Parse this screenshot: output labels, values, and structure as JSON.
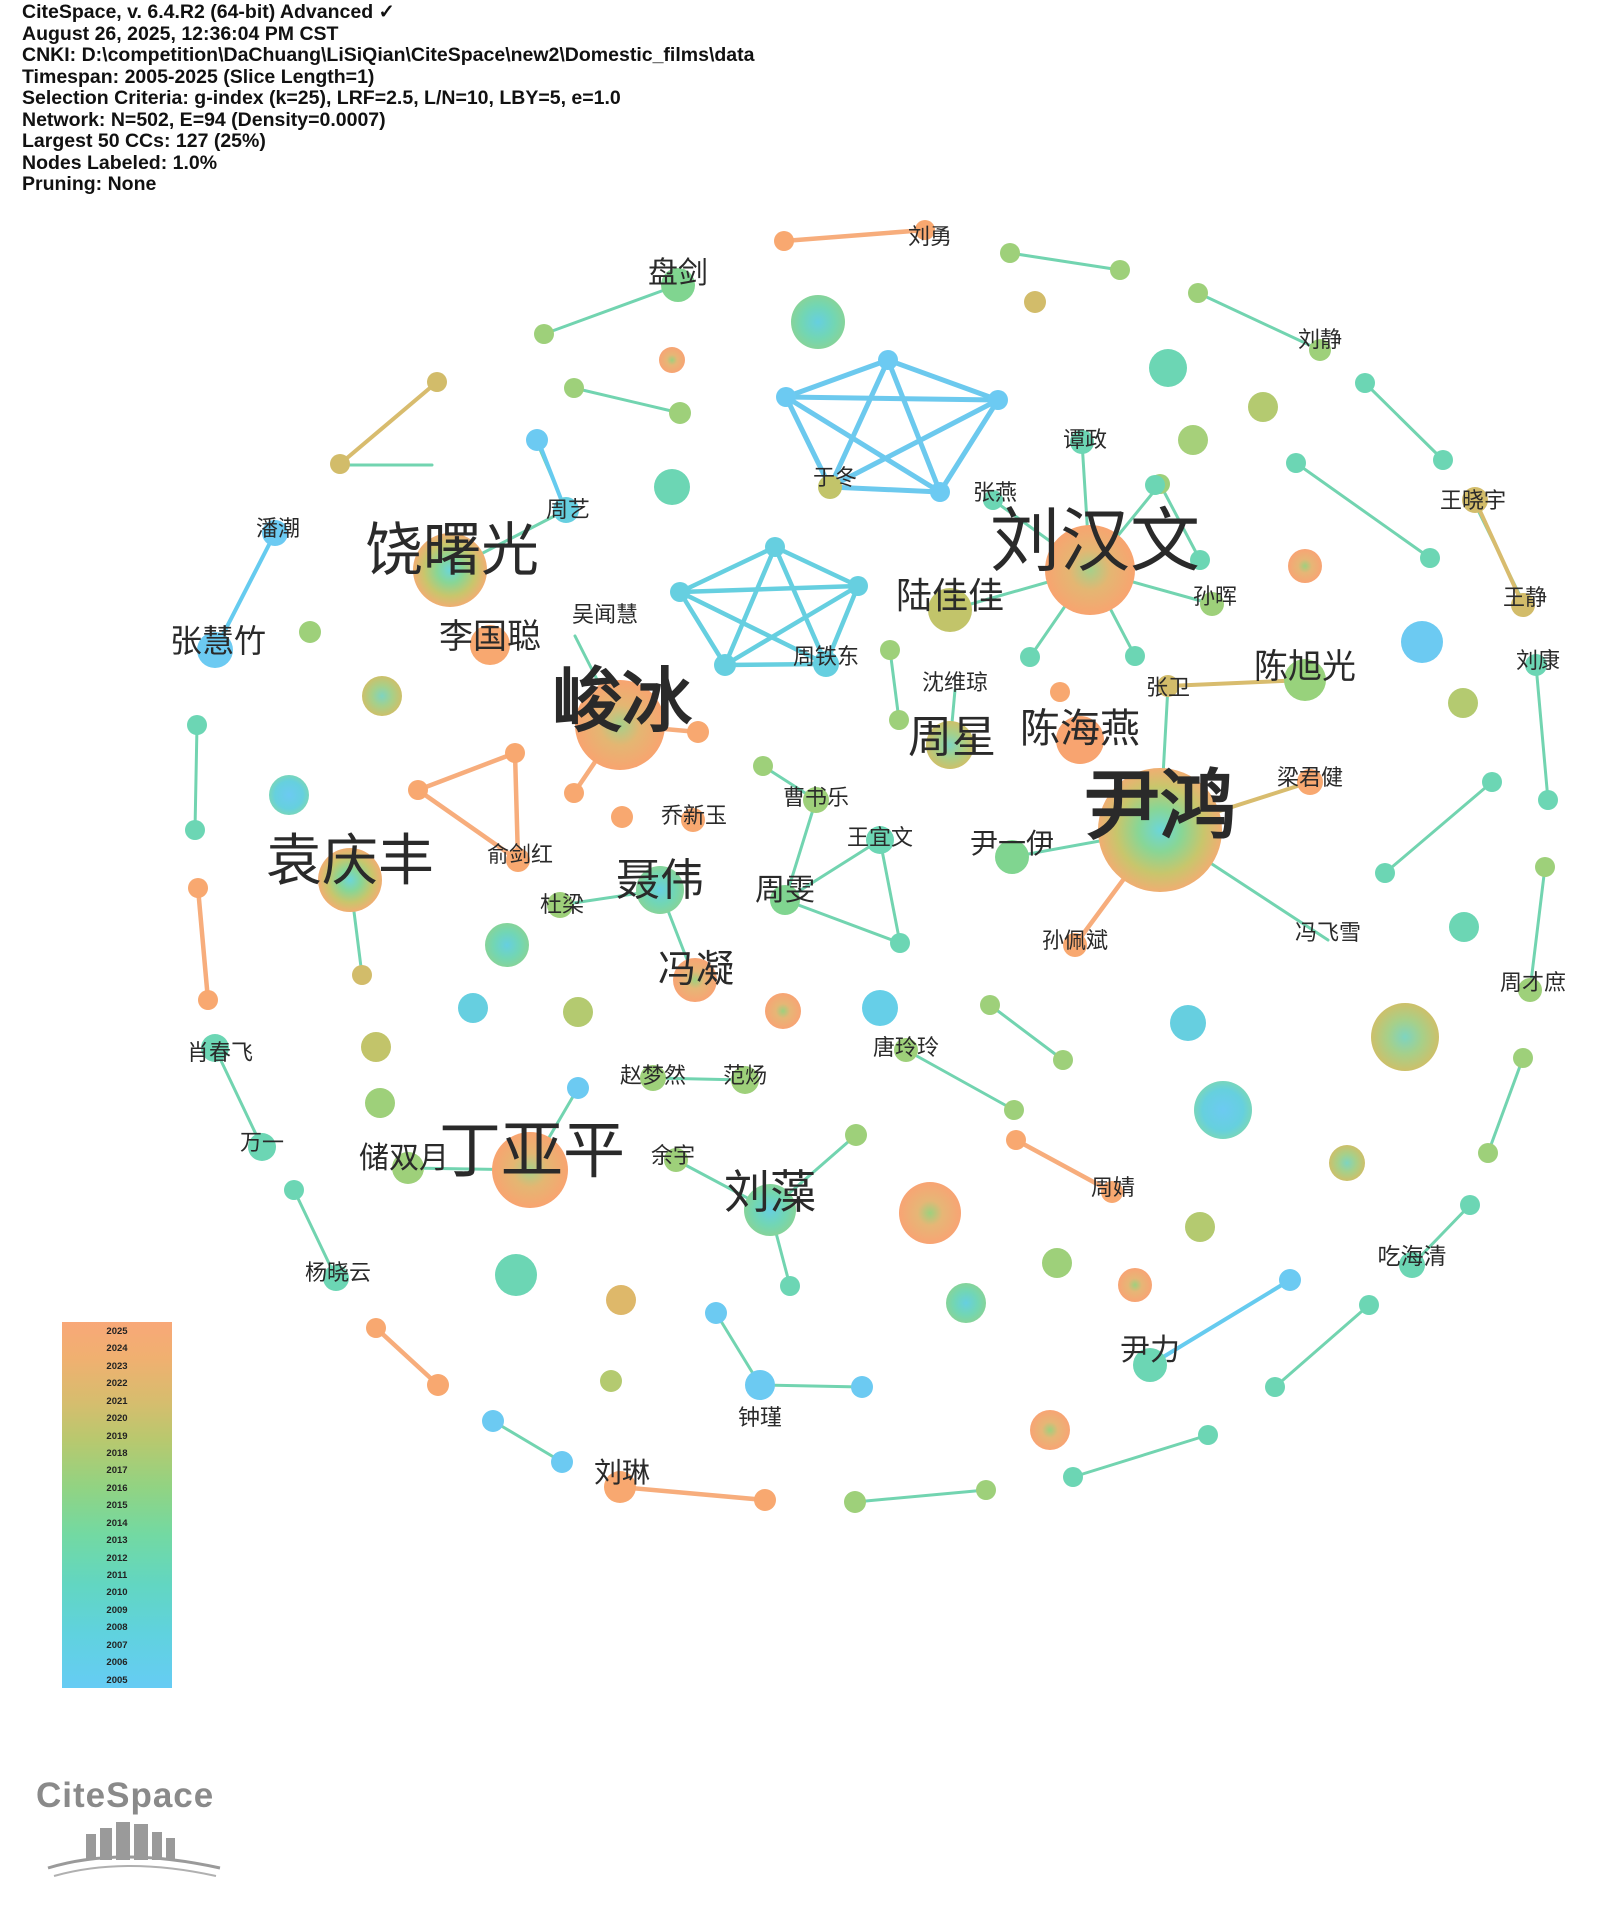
{
  "header": {
    "lines": [
      "CiteSpace, v. 6.4.R2 (64-bit) Advanced ✓",
      "August 26, 2025, 12:36:04 PM CST",
      "CNKI: D:\\competition\\DaChuang\\LiSiQian\\CiteSpace\\new2\\Domestic_films\\data",
      "Timespan: 2005-2025 (Slice Length=1)",
      "Selection Criteria: g-index (k=25), LRF=2.5, L/N=10, LBY=5, e=1.0",
      "Network: N=502, E=94 (Density=0.0007)",
      "Largest 50 CCs: 127 (25%)",
      "Nodes Labeled: 1.0%",
      "Pruning: None"
    ]
  },
  "legend": {
    "years": [
      "2025",
      "2024",
      "2023",
      "2022",
      "2021",
      "2020",
      "2019",
      "2018",
      "2017",
      "2016",
      "2015",
      "2014",
      "2013",
      "2012",
      "2011",
      "2010",
      "2009",
      "2008",
      "2007",
      "2006",
      "2005"
    ]
  },
  "logo": {
    "text": "CiteSpace",
    "icon": "citespace-logo-icon"
  },
  "palette": {
    "orange": "#f8a870",
    "tan": "#deb86a",
    "yellow": "#c2c46a",
    "lime": "#9ed07a",
    "green": "#80d590",
    "teal": "#6cd6b4",
    "cyan": "#66cfe0",
    "blue": "#6ccaf2"
  },
  "nodes": [
    {
      "id": "yinhong",
      "label": "尹鸿",
      "size": "xl",
      "color": "yellow",
      "pos": [
        1160,
        830
      ]
    },
    {
      "id": "liuhanwen",
      "label": "刘汉文",
      "size": "xl",
      "color": "tan",
      "pos": [
        1090,
        570
      ]
    },
    {
      "id": "junbing",
      "label": "峻冰",
      "size": "xl",
      "color": "orange",
      "pos": [
        620,
        725
      ]
    },
    {
      "id": "raoshuguang",
      "label": "饶曙光",
      "size": "xl",
      "color": "yellow",
      "pos": [
        450,
        570
      ]
    },
    {
      "id": "dingyaping",
      "label": "丁亚平",
      "size": "xl",
      "color": "orange",
      "pos": [
        530,
        1170
      ]
    },
    {
      "id": "yuanqingfeng",
      "label": "袁庆丰",
      "size": "xl",
      "color": "yellow",
      "pos": [
        350,
        880
      ]
    },
    {
      "id": "niewei",
      "label": "聂伟",
      "size": "lg",
      "color": "green",
      "pos": [
        660,
        890
      ]
    },
    {
      "id": "liuzao",
      "label": "刘藻",
      "size": "lg",
      "color": "teal",
      "pos": [
        770,
        1210
      ]
    },
    {
      "id": "zhouxing",
      "label": "周星",
      "size": "lg",
      "color": "green",
      "pos": [
        950,
        745
      ]
    },
    {
      "id": "chenhaiyan",
      "label": "陈海燕",
      "size": "lg",
      "color": "orange",
      "pos": [
        1080,
        740
      ]
    },
    {
      "id": "lujiajia",
      "label": "陆佳佳",
      "size": "lg",
      "color": "yellow",
      "pos": [
        950,
        610
      ]
    },
    {
      "id": "chenxuguang",
      "label": "陈旭光",
      "size": "lg",
      "color": "green",
      "pos": [
        1305,
        680
      ]
    },
    {
      "id": "liguocong",
      "label": "李国聪",
      "size": "lg",
      "color": "orange",
      "pos": [
        490,
        645
      ]
    },
    {
      "id": "zhanghuizhu",
      "label": "张慧竹",
      "size": "lg",
      "color": "blue",
      "pos": [
        215,
        650
      ]
    },
    {
      "id": "fengning",
      "label": "冯凝",
      "size": "lg",
      "color": "orange",
      "pos": [
        695,
        980
      ]
    },
    {
      "id": "panjian",
      "label": "盘剑",
      "size": "lg",
      "color": "green",
      "pos": [
        678,
        285
      ]
    },
    {
      "id": "chushuangyue",
      "label": "储双月",
      "size": "md",
      "color": "green",
      "pos": [
        408,
        1168
      ]
    },
    {
      "id": "zhouwen",
      "label": "周雯",
      "size": "md",
      "color": "green",
      "pos": [
        785,
        900
      ]
    },
    {
      "id": "yinyiyi",
      "label": "尹一伊",
      "size": "md",
      "color": "green",
      "pos": [
        1012,
        857
      ]
    },
    {
      "id": "yinli",
      "label": "尹力",
      "size": "md",
      "color": "teal",
      "pos": [
        1150,
        1365
      ]
    },
    {
      "id": "liulin",
      "label": "刘琳",
      "size": "md",
      "color": "orange",
      "pos": [
        620,
        1485
      ]
    },
    {
      "id": "wuhaiqing",
      "label": "吃海清",
      "size": "sm",
      "color": "teal",
      "pos": [
        1412,
        1265
      ]
    }
  ]
}
